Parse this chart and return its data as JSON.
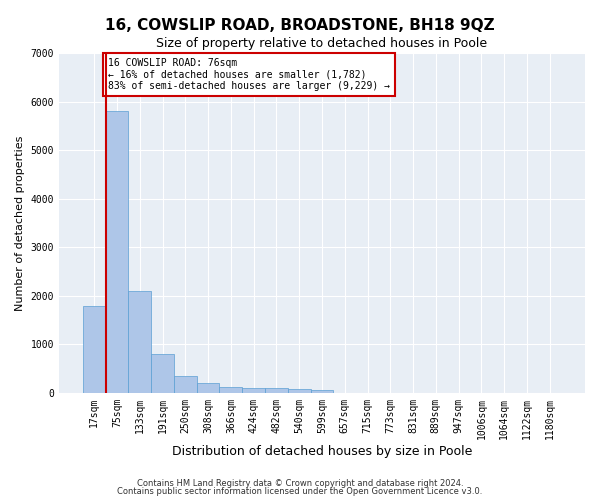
{
  "title": "16, COWSLIP ROAD, BROADSTONE, BH18 9QZ",
  "subtitle": "Size of property relative to detached houses in Poole",
  "xlabel": "Distribution of detached houses by size in Poole",
  "ylabel": "Number of detached properties",
  "footnote1": "Contains HM Land Registry data © Crown copyright and database right 2024.",
  "footnote2": "Contains public sector information licensed under the Open Government Licence v3.0.",
  "categories": [
    "17sqm",
    "75sqm",
    "133sqm",
    "191sqm",
    "250sqm",
    "308sqm",
    "366sqm",
    "424sqm",
    "482sqm",
    "540sqm",
    "599sqm",
    "657sqm",
    "715sqm",
    "773sqm",
    "831sqm",
    "889sqm",
    "947sqm",
    "1006sqm",
    "1064sqm",
    "1122sqm",
    "1180sqm"
  ],
  "values": [
    1782,
    5800,
    2090,
    800,
    340,
    195,
    130,
    110,
    100,
    80,
    70,
    0,
    0,
    0,
    0,
    0,
    0,
    0,
    0,
    0,
    0
  ],
  "bar_color": "#aec6e8",
  "bar_edge_color": "#5a9fd4",
  "highlight_bar_index": 1,
  "highlight_color": "#cc0000",
  "annotation_line1": "16 COWSLIP ROAD: 76sqm",
  "annotation_line2": "← 16% of detached houses are smaller (1,782)",
  "annotation_line3": "83% of semi-detached houses are larger (9,229) →",
  "annotation_box_color": "#ffffff",
  "annotation_box_edge": "#cc0000",
  "ylim": [
    0,
    7000
  ],
  "yticks": [
    0,
    1000,
    2000,
    3000,
    4000,
    5000,
    6000,
    7000
  ],
  "plot_bg_color": "#e8eef5",
  "title_fontsize": 11,
  "subtitle_fontsize": 9,
  "xlabel_fontsize": 9,
  "ylabel_fontsize": 8,
  "tick_fontsize": 7,
  "annotation_fontsize": 7,
  "footnote_fontsize": 6
}
